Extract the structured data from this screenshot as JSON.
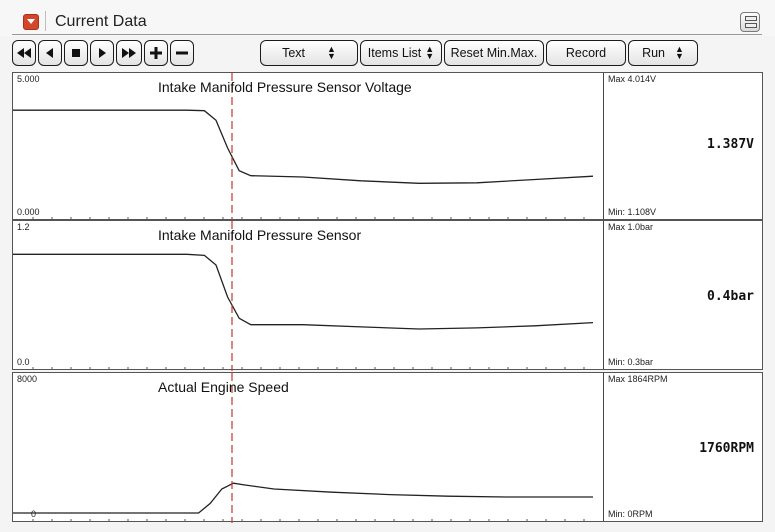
{
  "window": {
    "title": "Current Data"
  },
  "toolbar": {
    "text_select": "Text",
    "items_list": "Items List",
    "reset": "Reset Min.Max.",
    "record": "Record",
    "run_select": "Run"
  },
  "panels": [
    {
      "title": "Intake Manifold Pressure Sensor Voltage",
      "scale_max": "5.000",
      "scale_min": "0.000",
      "max_text": "Max 4.014V",
      "min_text": "Min: 1.108V",
      "current": "1.387V",
      "y_range": [
        0,
        5
      ],
      "trace": [
        [
          0,
          4.0
        ],
        [
          0.3,
          4.0
        ],
        [
          0.33,
          3.98
        ],
        [
          0.35,
          3.6
        ],
        [
          0.37,
          2.5
        ],
        [
          0.39,
          1.6
        ],
        [
          0.41,
          1.4
        ],
        [
          0.5,
          1.35
        ],
        [
          0.6,
          1.2
        ],
        [
          0.7,
          1.1
        ],
        [
          0.8,
          1.12
        ],
        [
          0.9,
          1.25
        ],
        [
          1.0,
          1.38
        ]
      ]
    },
    {
      "title": "Intake Manifold Pressure Sensor",
      "scale_max": "1.2",
      "scale_min": "0.0",
      "max_text": "Max   1.0bar",
      "min_text": "Min:   0.3bar",
      "current": "0.4bar",
      "y_range": [
        0,
        1.2
      ],
      "trace": [
        [
          0,
          1.0
        ],
        [
          0.3,
          1.0
        ],
        [
          0.33,
          0.99
        ],
        [
          0.35,
          0.9
        ],
        [
          0.37,
          0.6
        ],
        [
          0.39,
          0.4
        ],
        [
          0.41,
          0.34
        ],
        [
          0.5,
          0.34
        ],
        [
          0.6,
          0.32
        ],
        [
          0.7,
          0.3
        ],
        [
          0.8,
          0.31
        ],
        [
          0.9,
          0.33
        ],
        [
          1.0,
          0.36
        ]
      ]
    },
    {
      "title": "Actual Engine Speed",
      "scale_max": "8000",
      "scale_min": "0",
      "max_text": "Max   1864RPM",
      "min_text": "Min:     0RPM",
      "current": "1760RPM",
      "y_range": [
        0,
        8000
      ],
      "trace": [
        [
          0,
          0
        ],
        [
          0.32,
          0
        ],
        [
          0.34,
          600
        ],
        [
          0.36,
          1500
        ],
        [
          0.38,
          1860
        ],
        [
          0.4,
          1750
        ],
        [
          0.45,
          1500
        ],
        [
          0.55,
          1300
        ],
        [
          0.65,
          1150
        ],
        [
          0.75,
          1050
        ],
        [
          0.85,
          1000
        ],
        [
          1.0,
          1000
        ]
      ]
    }
  ],
  "cursor": {
    "color": "#c0392b"
  },
  "colors": {
    "trace": "#222222",
    "menu_icon": "#d4462a"
  }
}
